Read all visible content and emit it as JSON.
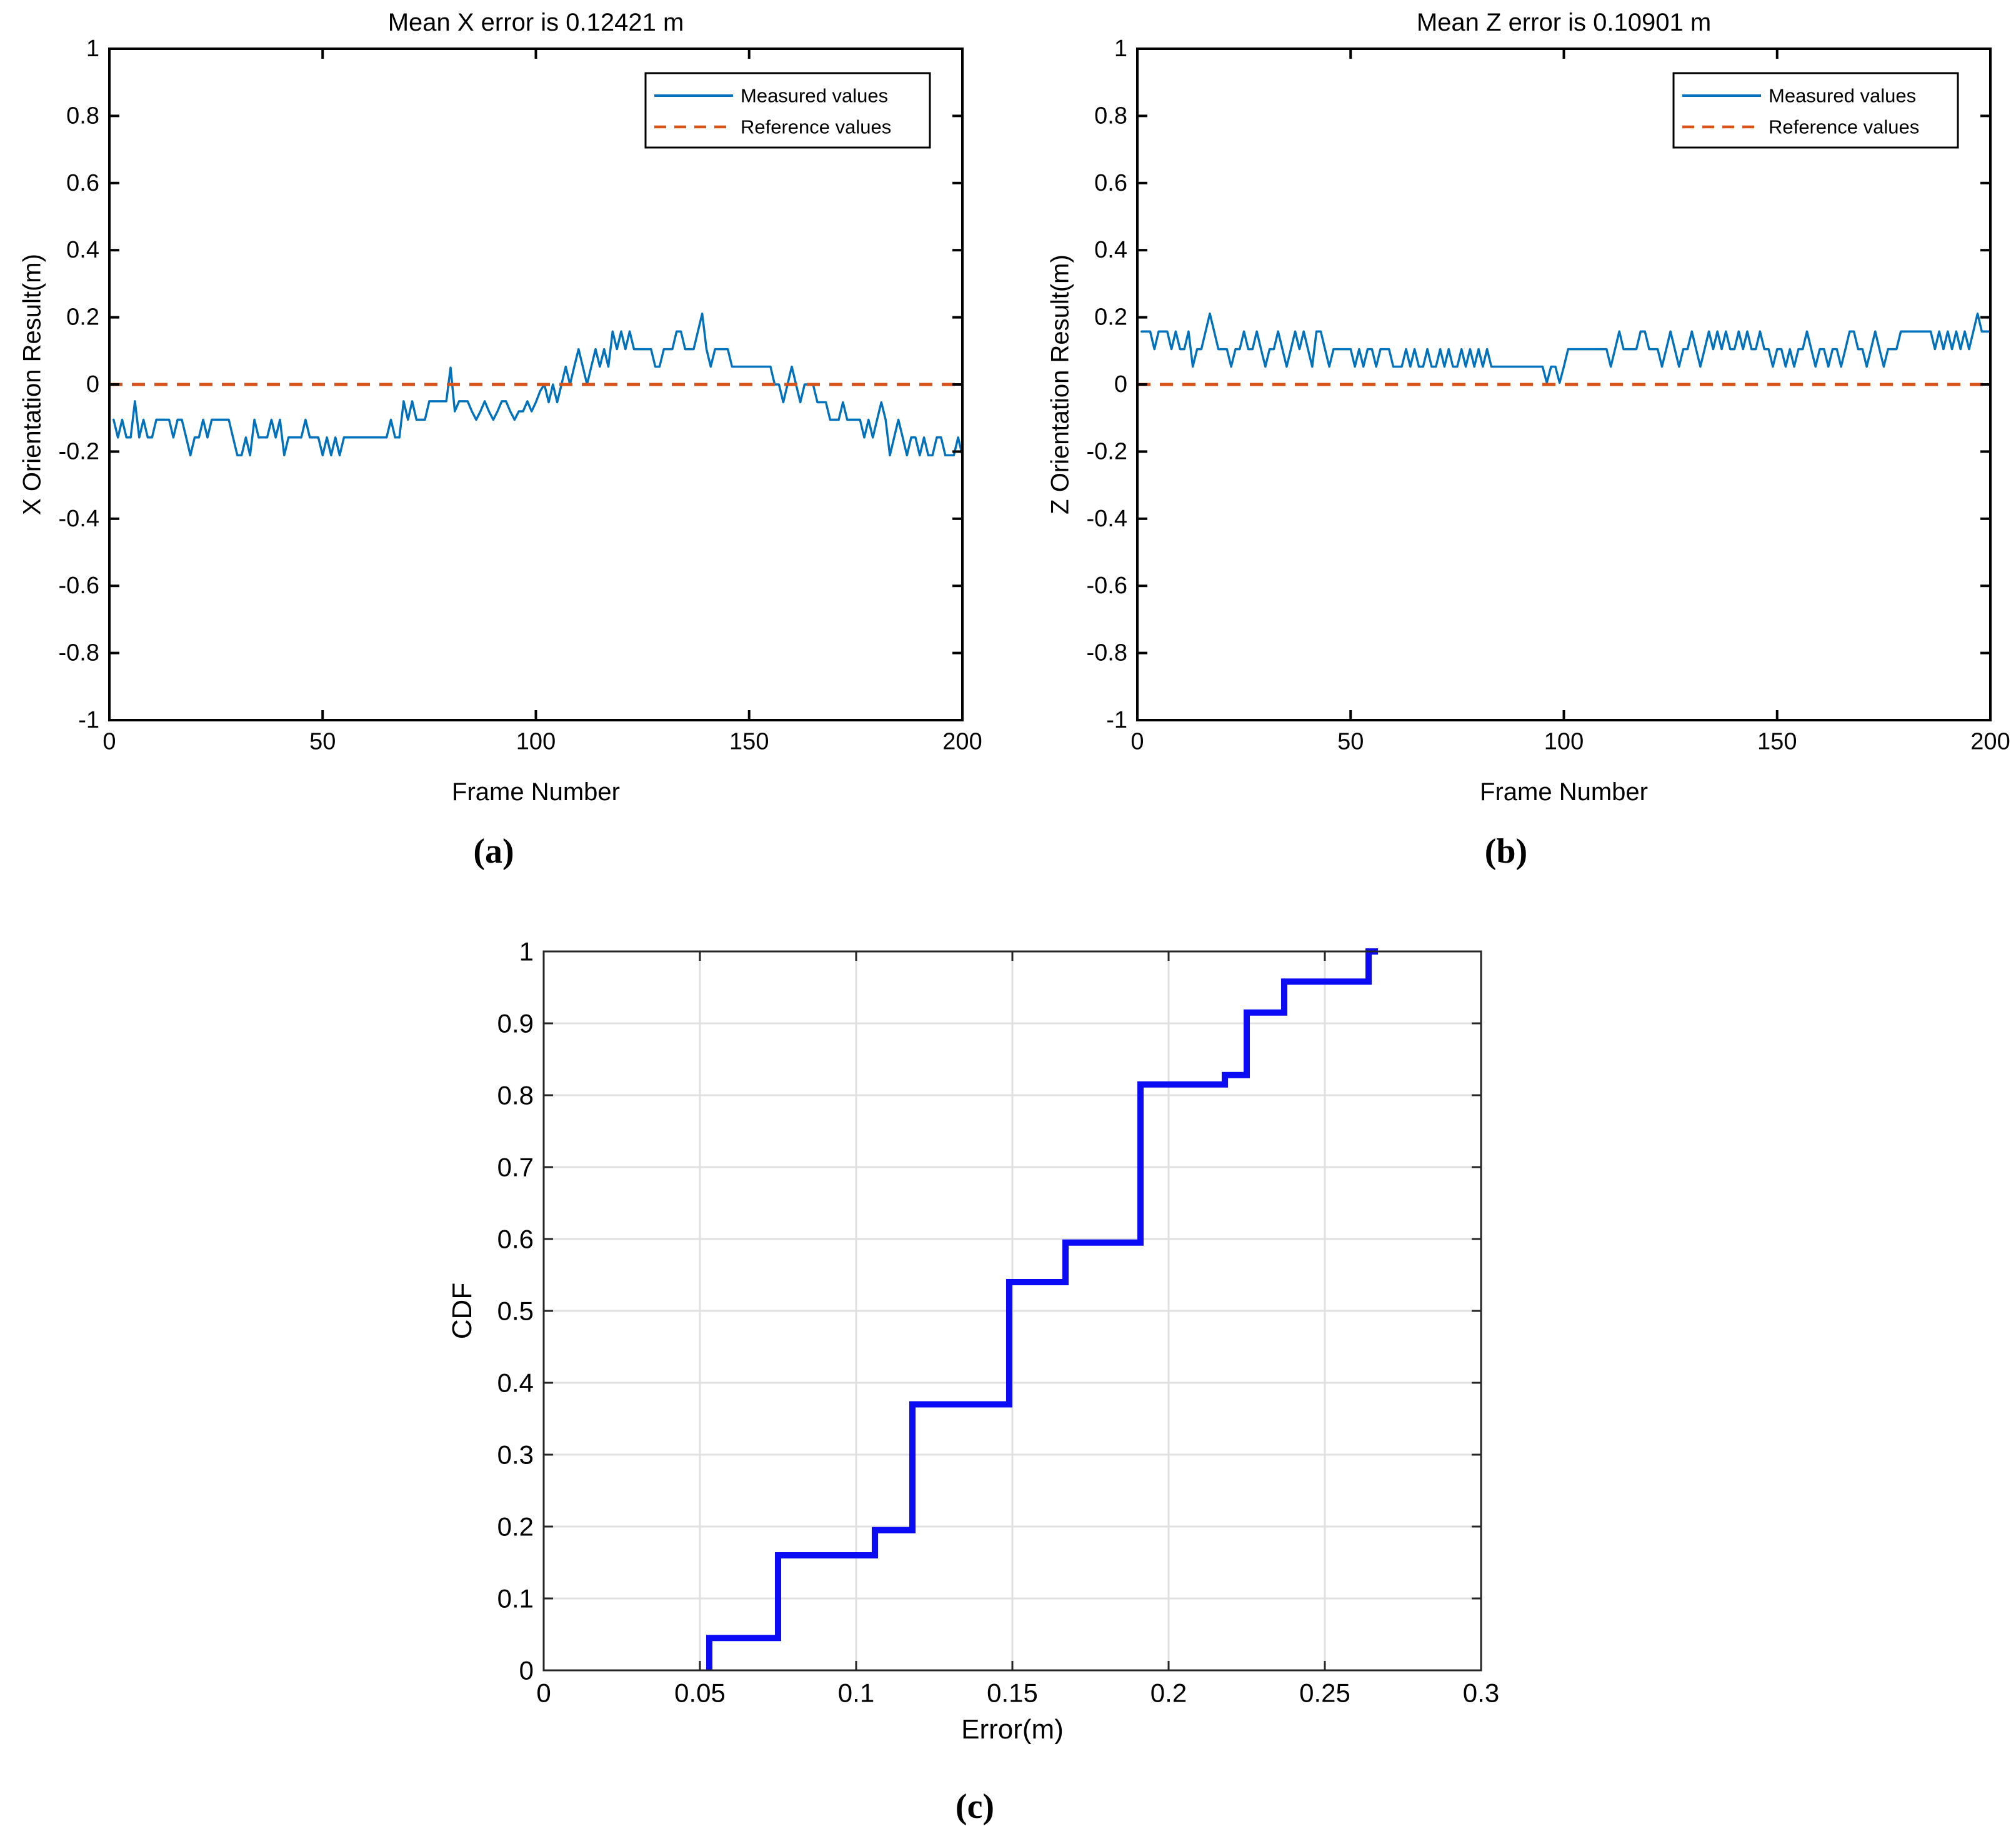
{
  "figure": {
    "background": "#ffffff",
    "subcaptions": {
      "a": "(a)",
      "b": "(b)",
      "c": "(c)"
    }
  },
  "colors": {
    "measured_blue": "#0072BD",
    "reference_orange": "#D95319",
    "cdf_blue": "#0b0bf5",
    "grid_gray": "#e0e0e0",
    "axis_black": "#000000",
    "cdf_axis_gray": "#262626"
  },
  "chart_data": [
    {
      "id": "x-orientation",
      "type": "line",
      "title": "Mean X error is 0.12421 m",
      "xlabel": "Frame Number",
      "ylabel": "X Orientation Result(m)",
      "xlim": [
        0,
        200
      ],
      "ylim": [
        -1,
        1
      ],
      "xticks": [
        0,
        50,
        100,
        150,
        200
      ],
      "xtick_labels": [
        "0",
        "50",
        "100",
        "150",
        "200"
      ],
      "yticks": [
        -1,
        -0.8,
        -0.6,
        -0.4,
        -0.2,
        0,
        0.2,
        0.4,
        0.6,
        0.8,
        1
      ],
      "ytick_labels": [
        "-1",
        "-0.8",
        "-0.6",
        "-0.4",
        "-0.2",
        "0",
        "0.2",
        "0.4",
        "0.6",
        "0.8",
        "1"
      ],
      "grid": false,
      "legend": [
        "Measured values",
        "Reference values"
      ],
      "legend_position": "northeast",
      "series": [
        {
          "name": "Measured values",
          "style": "solid",
          "color": "#0072BD",
          "x_start": 1,
          "values": [
            -0.105,
            -0.158,
            -0.105,
            -0.158,
            -0.158,
            -0.05,
            -0.158,
            -0.105,
            -0.158,
            -0.158,
            -0.105,
            -0.105,
            -0.105,
            -0.105,
            -0.158,
            -0.105,
            -0.105,
            -0.158,
            -0.211,
            -0.158,
            -0.158,
            -0.105,
            -0.158,
            -0.105,
            -0.105,
            -0.105,
            -0.105,
            -0.105,
            -0.158,
            -0.211,
            -0.211,
            -0.158,
            -0.211,
            -0.105,
            -0.158,
            -0.158,
            -0.158,
            -0.105,
            -0.158,
            -0.105,
            -0.211,
            -0.158,
            -0.158,
            -0.158,
            -0.158,
            -0.105,
            -0.158,
            -0.158,
            -0.158,
            -0.211,
            -0.158,
            -0.211,
            -0.158,
            -0.211,
            -0.158,
            -0.158,
            -0.158,
            -0.158,
            -0.158,
            -0.158,
            -0.158,
            -0.158,
            -0.158,
            -0.158,
            -0.158,
            -0.105,
            -0.158,
            -0.158,
            -0.05,
            -0.105,
            -0.05,
            -0.105,
            -0.105,
            -0.105,
            -0.05,
            -0.05,
            -0.05,
            -0.05,
            -0.05,
            0.05,
            -0.08,
            -0.05,
            -0.05,
            -0.05,
            -0.08,
            -0.105,
            -0.08,
            -0.05,
            -0.08,
            -0.105,
            -0.08,
            -0.05,
            -0.05,
            -0.08,
            -0.105,
            -0.08,
            -0.08,
            -0.05,
            -0.08,
            -0.053,
            -0.02,
            0.0,
            -0.053,
            0.0,
            -0.053,
            0.0,
            0.053,
            0.0,
            0.053,
            0.105,
            0.053,
            0.0,
            0.053,
            0.105,
            0.053,
            0.105,
            0.053,
            0.158,
            0.105,
            0.158,
            0.105,
            0.158,
            0.105,
            0.105,
            0.105,
            0.105,
            0.105,
            0.053,
            0.053,
            0.105,
            0.105,
            0.105,
            0.158,
            0.158,
            0.105,
            0.105,
            0.105,
            0.158,
            0.211,
            0.105,
            0.053,
            0.105,
            0.105,
            0.105,
            0.105,
            0.053,
            0.053,
            0.053,
            0.053,
            0.053,
            0.053,
            0.053,
            0.053,
            0.053,
            0.053,
            0.0,
            0.0,
            -0.053,
            0.0,
            0.053,
            0.0,
            -0.053,
            0.0,
            0.0,
            0.0,
            -0.053,
            -0.053,
            -0.053,
            -0.105,
            -0.105,
            -0.105,
            -0.053,
            -0.105,
            -0.105,
            -0.105,
            -0.105,
            -0.158,
            -0.105,
            -0.158,
            -0.105,
            -0.053,
            -0.105,
            -0.211,
            -0.158,
            -0.105,
            -0.158,
            -0.211,
            -0.158,
            -0.158,
            -0.211,
            -0.158,
            -0.211,
            -0.211,
            -0.158,
            -0.158,
            -0.211,
            -0.211,
            -0.211,
            -0.158,
            -0.211
          ]
        },
        {
          "name": "Reference values",
          "style": "dashed",
          "color": "#D95319",
          "constant": 0
        }
      ]
    },
    {
      "id": "z-orientation",
      "type": "line",
      "title": "Mean Z error is 0.10901 m",
      "xlabel": "Frame Number",
      "ylabel": "Z Orientation Result(m)",
      "xlim": [
        0,
        200
      ],
      "ylim": [
        -1,
        1
      ],
      "xticks": [
        0,
        50,
        100,
        150,
        200
      ],
      "xtick_labels": [
        "0",
        "50",
        "100",
        "150",
        "200"
      ],
      "yticks": [
        -1,
        -0.8,
        -0.6,
        -0.4,
        -0.2,
        0,
        0.2,
        0.4,
        0.6,
        0.8,
        1
      ],
      "ytick_labels": [
        "-1",
        "-0.8",
        "-0.6",
        "-0.4",
        "-0.2",
        "0",
        "0.2",
        "0.4",
        "0.6",
        "0.8",
        "1"
      ],
      "grid": false,
      "legend": [
        "Measured values",
        "Reference values"
      ],
      "legend_position": "northeast",
      "series": [
        {
          "name": "Measured values",
          "style": "solid",
          "color": "#0072BD",
          "x_start": 1,
          "values": [
            0.158,
            0.158,
            0.158,
            0.105,
            0.158,
            0.158,
            0.158,
            0.105,
            0.158,
            0.105,
            0.105,
            0.158,
            0.053,
            0.105,
            0.105,
            0.158,
            0.211,
            0.158,
            0.105,
            0.105,
            0.105,
            0.053,
            0.105,
            0.105,
            0.158,
            0.105,
            0.105,
            0.158,
            0.105,
            0.053,
            0.105,
            0.105,
            0.158,
            0.105,
            0.053,
            0.105,
            0.158,
            0.105,
            0.158,
            0.105,
            0.053,
            0.158,
            0.158,
            0.105,
            0.053,
            0.105,
            0.105,
            0.105,
            0.105,
            0.105,
            0.053,
            0.105,
            0.053,
            0.105,
            0.105,
            0.053,
            0.105,
            0.105,
            0.105,
            0.053,
            0.053,
            0.053,
            0.105,
            0.053,
            0.105,
            0.053,
            0.053,
            0.105,
            0.053,
            0.053,
            0.105,
            0.053,
            0.105,
            0.053,
            0.053,
            0.105,
            0.053,
            0.105,
            0.053,
            0.105,
            0.053,
            0.105,
            0.053,
            0.053,
            0.053,
            0.053,
            0.053,
            0.053,
            0.053,
            0.053,
            0.053,
            0.053,
            0.053,
            0.053,
            0.053,
            0.005,
            0.053,
            0.053,
            0.005,
            0.053,
            0.105,
            0.105,
            0.105,
            0.105,
            0.105,
            0.105,
            0.105,
            0.105,
            0.105,
            0.105,
            0.053,
            0.105,
            0.158,
            0.105,
            0.105,
            0.105,
            0.105,
            0.158,
            0.158,
            0.105,
            0.105,
            0.105,
            0.053,
            0.105,
            0.158,
            0.105,
            0.053,
            0.105,
            0.105,
            0.158,
            0.105,
            0.053,
            0.105,
            0.158,
            0.105,
            0.158,
            0.105,
            0.158,
            0.105,
            0.105,
            0.158,
            0.105,
            0.158,
            0.105,
            0.105,
            0.158,
            0.105,
            0.105,
            0.053,
            0.105,
            0.105,
            0.053,
            0.105,
            0.053,
            0.105,
            0.105,
            0.158,
            0.105,
            0.053,
            0.105,
            0.105,
            0.053,
            0.105,
            0.105,
            0.053,
            0.105,
            0.158,
            0.158,
            0.105,
            0.105,
            0.053,
            0.105,
            0.158,
            0.105,
            0.053,
            0.105,
            0.105,
            0.105,
            0.158,
            0.158,
            0.158,
            0.158,
            0.158,
            0.158,
            0.158,
            0.158,
            0.105,
            0.158,
            0.105,
            0.158,
            0.105,
            0.158,
            0.105,
            0.158,
            0.105,
            0.158,
            0.211,
            0.158,
            0.158,
            0.158
          ]
        },
        {
          "name": "Reference values",
          "style": "dashed",
          "color": "#D95319",
          "constant": 0
        }
      ]
    },
    {
      "id": "error-cdf",
      "type": "step",
      "title": "",
      "xlabel": "Error(m)",
      "ylabel": "CDF",
      "xlim": [
        0,
        0.3
      ],
      "ylim": [
        0,
        1
      ],
      "xticks": [
        0,
        0.05,
        0.1,
        0.15,
        0.2,
        0.25,
        0.3
      ],
      "xtick_labels": [
        "0",
        "0.05",
        "0.1",
        "0.15",
        "0.2",
        "0.25",
        "0.3"
      ],
      "yticks": [
        0,
        0.1,
        0.2,
        0.3,
        0.4,
        0.5,
        0.6,
        0.7,
        0.8,
        0.9,
        1
      ],
      "ytick_labels": [
        "0",
        "0.1",
        "0.2",
        "0.3",
        "0.4",
        "0.5",
        "0.6",
        "0.7",
        "0.8",
        "0.9",
        "1"
      ],
      "grid": true,
      "legend": [],
      "series": [
        {
          "name": "CDF",
          "style": "step",
          "color": "#0b0bf5",
          "start": [
            0.053,
            0
          ],
          "steps": [
            [
              0.053,
              0.045
            ],
            [
              0.075,
              0.16
            ],
            [
              0.106,
              0.195
            ],
            [
              0.118,
              0.37
            ],
            [
              0.149,
              0.54
            ],
            [
              0.167,
              0.595
            ],
            [
              0.191,
              0.815
            ],
            [
              0.218,
              0.828
            ],
            [
              0.225,
              0.915
            ],
            [
              0.237,
              0.958
            ],
            [
              0.264,
              1.0
            ]
          ],
          "end_x": 0.267
        }
      ]
    }
  ]
}
